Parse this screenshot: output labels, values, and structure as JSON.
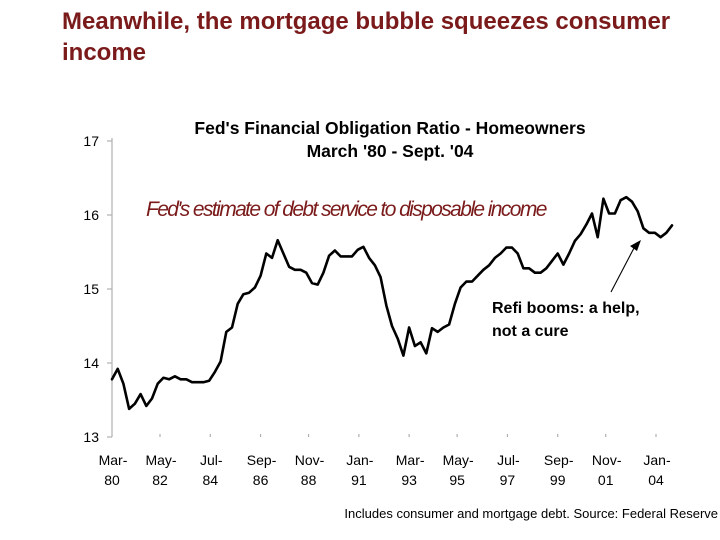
{
  "slide": {
    "title": "Meanwhile, the mortgage bubble squeezes consumer income",
    "title_color": "#7a1a1a"
  },
  "chart_data": {
    "type": "line",
    "title": "Fed's Financial Obligation Ratio - Homeowners",
    "subtitle": "March '80 - Sept. '04",
    "annotation": "Fed's estimate of debt service to disposable income",
    "callout": "Refi booms: a help, not a cure",
    "footnote": "Includes consumer and mortgage debt. Source: Federal Reserve",
    "xlabel": "",
    "ylabel": "",
    "ylim": [
      13,
      17
    ],
    "yticks": [
      13,
      14,
      15,
      16,
      17
    ],
    "xlim": [
      1980.2,
      2004.7
    ],
    "xtick_labels": [
      {
        "x": 1980.2,
        "top": "Mar-",
        "bottom": "80"
      },
      {
        "x": 1982.3,
        "top": "May-",
        "bottom": "82"
      },
      {
        "x": 1984.5,
        "top": "Jul-",
        "bottom": "84"
      },
      {
        "x": 1986.7,
        "top": "Sep-",
        "bottom": "86"
      },
      {
        "x": 1988.8,
        "top": "Nov-",
        "bottom": "88"
      },
      {
        "x": 1991.0,
        "top": "Jan-",
        "bottom": "91"
      },
      {
        "x": 1993.2,
        "top": "Mar-",
        "bottom": "93"
      },
      {
        "x": 1995.3,
        "top": "May-",
        "bottom": "95"
      },
      {
        "x": 1997.5,
        "top": "Jul-",
        "bottom": "97"
      },
      {
        "x": 1999.7,
        "top": "Sep-",
        "bottom": "99"
      },
      {
        "x": 2001.8,
        "top": "Nov-",
        "bottom": "01"
      },
      {
        "x": 2004.0,
        "top": "Jan-",
        "bottom": "04"
      }
    ],
    "grid": false,
    "line_color": "#000000",
    "series": [
      {
        "x": [
          1980.2,
          1980.45,
          1980.7,
          1980.95,
          1981.2,
          1981.45,
          1981.7,
          1981.95,
          1982.2,
          1982.45,
          1982.7,
          1982.95,
          1983.2,
          1983.45,
          1983.7,
          1983.95,
          1984.2,
          1984.45,
          1984.7,
          1984.95,
          1985.2,
          1985.45,
          1985.7,
          1985.95,
          1986.2,
          1986.45,
          1986.7,
          1986.95,
          1987.2,
          1987.45,
          1987.7,
          1987.95,
          1988.2,
          1988.45,
          1988.7,
          1988.95,
          1989.2,
          1989.45,
          1989.7,
          1989.95,
          1990.2,
          1990.45,
          1990.7,
          1990.95,
          1991.2,
          1991.45,
          1991.7,
          1991.95,
          1992.2,
          1992.45,
          1992.7,
          1992.95,
          1993.2,
          1993.45,
          1993.7,
          1993.95,
          1994.2,
          1994.45,
          1994.7,
          1994.95,
          1995.2,
          1995.45,
          1995.7,
          1995.95,
          1996.2,
          1996.45,
          1996.7,
          1996.95,
          1997.2,
          1997.45,
          1997.7,
          1997.95,
          1998.2,
          1998.45,
          1998.7,
          1998.95,
          1999.2,
          1999.45,
          1999.7,
          1999.95,
          2000.2,
          2000.45,
          2000.7,
          2000.95,
          2001.2,
          2001.45,
          2001.7,
          2001.95,
          2002.2,
          2002.45,
          2002.7,
          2002.95,
          2003.2,
          2003.45,
          2003.7,
          2003.95,
          2004.2,
          2004.45,
          2004.7
        ],
        "values": [
          13.78,
          13.92,
          13.72,
          13.38,
          13.45,
          13.58,
          13.42,
          13.52,
          13.72,
          13.8,
          13.78,
          13.82,
          13.78,
          13.78,
          13.74,
          13.74,
          13.74,
          13.76,
          13.88,
          14.02,
          14.42,
          14.48,
          14.8,
          14.93,
          14.95,
          15.02,
          15.18,
          15.48,
          15.42,
          15.66,
          15.48,
          15.3,
          15.26,
          15.26,
          15.22,
          15.08,
          15.06,
          15.22,
          15.45,
          15.52,
          15.44,
          15.44,
          15.44,
          15.53,
          15.57,
          15.42,
          15.32,
          15.16,
          14.78,
          14.5,
          14.33,
          14.1,
          14.48,
          14.23,
          14.28,
          14.13,
          14.47,
          14.42,
          14.48,
          14.52,
          14.8,
          15.02,
          15.1,
          15.1,
          15.18,
          15.26,
          15.32,
          15.42,
          15.48,
          15.56,
          15.56,
          15.48,
          15.28,
          15.28,
          15.22,
          15.22,
          15.28,
          15.38,
          15.48,
          15.33,
          15.48,
          15.65,
          15.74,
          15.87,
          16.02,
          15.7,
          16.22,
          16.02,
          16.02,
          16.2,
          16.24,
          16.18,
          16.05,
          15.82,
          15.76,
          15.76,
          15.7,
          15.76,
          15.86
        ]
      }
    ]
  }
}
